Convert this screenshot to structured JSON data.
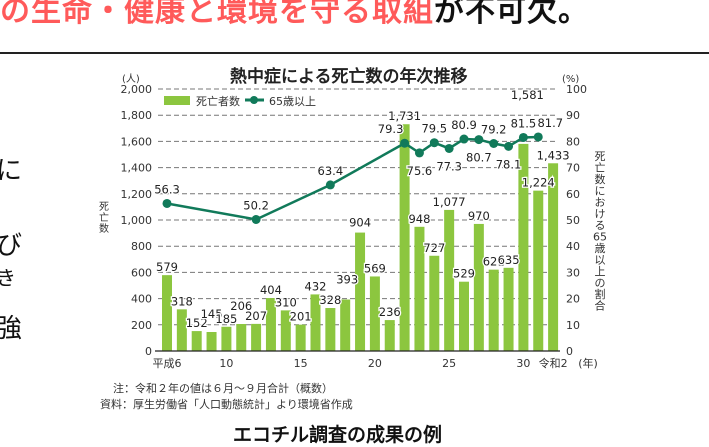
{
  "headline": {
    "red_text": "の生命・健康と環境を守る取組",
    "black_text": "が不可欠。"
  },
  "left_fragments": [
    "に",
    "び",
    "き",
    "強"
  ],
  "chart_data": {
    "type": "bar+line",
    "title": "熱中症による死亡数の年次推移",
    "ylabel": "死亡数",
    "ylabel_unit": "(人)",
    "y2label": "死亡数における65歳以上の割合",
    "y2label_unit": "(%)",
    "xlabel_unit": "(年)",
    "ylim": [
      0,
      2000
    ],
    "y2lim": [
      0,
      100
    ],
    "yticks": [
      "0",
      "200",
      "400",
      "600",
      "800",
      "1,000",
      "1,200",
      "1,400",
      "1,600",
      "1,800",
      "2,000"
    ],
    "y2ticks": [
      "0",
      "10",
      "20",
      "30",
      "40",
      "50",
      "60",
      "70",
      "80",
      "90",
      "100"
    ],
    "xtick_labels": [
      {
        "index": 0,
        "label": "平成6"
      },
      {
        "index": 4,
        "label": "10"
      },
      {
        "index": 9,
        "label": "15"
      },
      {
        "index": 14,
        "label": "20"
      },
      {
        "index": 19,
        "label": "25"
      },
      {
        "index": 24,
        "label": "30"
      },
      {
        "index": 26,
        "label": "令和2"
      }
    ],
    "grid": "dashed horizontal",
    "legend": [
      "死亡者数",
      "65歳以上"
    ],
    "categories": [
      "H6",
      "H7",
      "H8",
      "H9",
      "H10",
      "H11",
      "H12",
      "H13",
      "H14",
      "H15",
      "H16",
      "H17",
      "H18",
      "H19",
      "H20",
      "H21",
      "H22",
      "H23",
      "H24",
      "H25",
      "H26",
      "H27",
      "H28",
      "H29",
      "H30",
      "R1",
      "R2"
    ],
    "series": [
      {
        "name": "死亡者数",
        "type": "bar",
        "color": "#8cc63f",
        "values": [
          579,
          318,
          152,
          145,
          185,
          206,
          207,
          404,
          310,
          201,
          432,
          328,
          393,
          904,
          569,
          236,
          1731,
          948,
          727,
          1077,
          529,
          970,
          621,
          635,
          1581,
          1224,
          1433
        ],
        "labels": [
          "579",
          "318",
          "152",
          "145",
          "185",
          "206",
          "207",
          "404",
          "310",
          "201",
          "432",
          "328",
          "393",
          "904",
          "569",
          "236",
          "1,731",
          "948",
          "727",
          "1,077",
          "529",
          "970",
          "621",
          "635",
          "1,581",
          "1,224",
          "1,433"
        ]
      },
      {
        "name": "65歳以上",
        "type": "line",
        "axis": "right",
        "color": "#117a5a",
        "points": [
          {
            "index": 0,
            "value": 56.3
          },
          {
            "index": 6,
            "value": 50.2
          },
          {
            "index": 11,
            "value": 63.4
          },
          {
            "index": 16,
            "value": 79.3
          },
          {
            "index": 17,
            "value": 75.6
          },
          {
            "index": 18,
            "value": 79.5
          },
          {
            "index": 19,
            "value": 77.3
          },
          {
            "index": 20,
            "value": 80.9
          },
          {
            "index": 21,
            "value": 80.7
          },
          {
            "index": 22,
            "value": 79.2
          },
          {
            "index": 23,
            "value": 78.1
          },
          {
            "index": 24,
            "value": 81.5
          },
          {
            "index": 25,
            "value": 81.7
          }
        ]
      }
    ]
  },
  "notes": {
    "note1": "注：令和２年の値は６月〜９月合計（概数）",
    "note2": "資料：厚生労働省「人口動態統計」より環境省作成"
  },
  "subtitle": "エコチル調査の成果の例"
}
